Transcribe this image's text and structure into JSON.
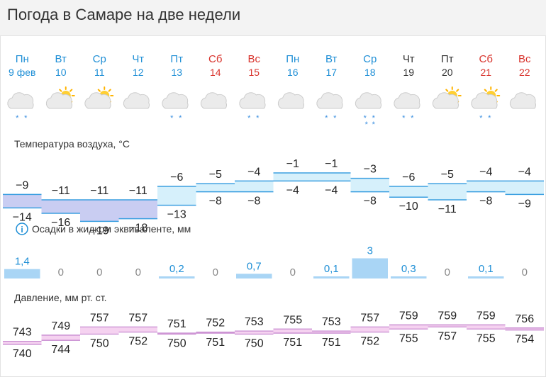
{
  "title": "Погода в Самаре на две недели",
  "days": [
    {
      "dow": "Пн",
      "date": "9 фев",
      "weekend": false,
      "dowColor": "#1f8fd6",
      "weather": "cloud-snow",
      "snow": 2
    },
    {
      "dow": "Вт",
      "date": "10",
      "weekend": false,
      "dowColor": "#1f8fd6",
      "weather": "sun-cloud",
      "snow": 0
    },
    {
      "dow": "Ср",
      "date": "11",
      "weekend": false,
      "dowColor": "#1f8fd6",
      "weather": "sun-cloud",
      "snow": 0
    },
    {
      "dow": "Чт",
      "date": "12",
      "weekend": false,
      "dowColor": "#1f8fd6",
      "weather": "cloud",
      "snow": 0
    },
    {
      "dow": "Пт",
      "date": "13",
      "weekend": false,
      "dowColor": "#1f8fd6",
      "weather": "cloud-snow",
      "snow": 2
    },
    {
      "dow": "Сб",
      "date": "14",
      "weekend": true,
      "dowColor": "#d8322b",
      "weather": "cloud",
      "snow": 0
    },
    {
      "dow": "Вс",
      "date": "15",
      "weekend": true,
      "dowColor": "#d8322b",
      "weather": "cloud-snow",
      "snow": 2
    },
    {
      "dow": "Пн",
      "date": "16",
      "weekend": false,
      "dowColor": "#1f8fd6",
      "weather": "cloud",
      "snow": 0
    },
    {
      "dow": "Вт",
      "date": "17",
      "weekend": false,
      "dowColor": "#1f8fd6",
      "weather": "cloud-snow",
      "snow": 2
    },
    {
      "dow": "Ср",
      "date": "18",
      "weekend": false,
      "dowColor": "#1f8fd6",
      "weather": "cloud-snow",
      "snow": 4
    },
    {
      "dow": "Чт",
      "date": "19",
      "weekend": false,
      "dowColor": "#333333",
      "weather": "cloud-snow",
      "snow": 2
    },
    {
      "dow": "Пт",
      "date": "20",
      "weekend": false,
      "dowColor": "#333333",
      "weather": "sun-cloud",
      "snow": 0
    },
    {
      "dow": "Сб",
      "date": "21",
      "weekend": true,
      "dowColor": "#d8322b",
      "weather": "sun-cloud-snow",
      "snow": 2
    },
    {
      "dow": "Вс",
      "date": "22",
      "weekend": true,
      "dowColor": "#d8322b",
      "weather": "cloud",
      "snow": 0
    }
  ],
  "temperature": {
    "label": "Температура воздуха, °С",
    "max": [
      "−9",
      "−11",
      "−11",
      "−11",
      "−6",
      "−5",
      "−4",
      "−1",
      "−1",
      "−3",
      "−6",
      "−5",
      "−4",
      "−4"
    ],
    "min": [
      "−14",
      "−16",
      "−19",
      "−18",
      "−13",
      "−8",
      "−8",
      "−4",
      "−4",
      "−8",
      "−10",
      "−11",
      "−8",
      "−9"
    ],
    "maxVal": [
      -9,
      -11,
      -11,
      -11,
      -6,
      -5,
      -4,
      -1,
      -1,
      -3,
      -6,
      -5,
      -4,
      -4
    ],
    "minVal": [
      -14,
      -16,
      -19,
      -18,
      -13,
      -8,
      -8,
      -4,
      -4,
      -8,
      -10,
      -11,
      -8,
      -9
    ]
  },
  "precipitation": {
    "label": "Осадки в жидком эквиваленте, мм",
    "info_icon": "info-icon",
    "values": [
      "1,4",
      "0",
      "0",
      "0",
      "0,2",
      "0",
      "0,7",
      "0",
      "0,1",
      "3",
      "0,3",
      "0",
      "0,1",
      "0"
    ],
    "amounts": [
      1.4,
      0,
      0,
      0,
      0.2,
      0,
      0.7,
      0,
      0.1,
      3,
      0.3,
      0,
      0.1,
      0
    ]
  },
  "pressure": {
    "label": "Давление, мм рт. ст.",
    "max": [
      "743",
      "749",
      "757",
      "757",
      "751",
      "752",
      "753",
      "755",
      "753",
      "757",
      "759",
      "759",
      "759",
      "756"
    ],
    "min": [
      "740",
      "744",
      "750",
      "752",
      "750",
      "751",
      "750",
      "751",
      "751",
      "752",
      "755",
      "757",
      "755",
      "754"
    ],
    "maxVal": [
      743,
      749,
      757,
      757,
      751,
      752,
      753,
      755,
      753,
      757,
      759,
      759,
      759,
      756
    ],
    "minVal": [
      740,
      744,
      750,
      752,
      750,
      751,
      750,
      751,
      751,
      752,
      755,
      757,
      755,
      754
    ]
  },
  "colors": {
    "weekday": "#1f8fd6",
    "weekend": "#d8322b",
    "snow": "#3b8fe0",
    "temp_cold": "#c9cdf2",
    "temp_warm": "#d6f0fb",
    "precip": "#a9d5f5",
    "pressure": "#f5d2f0",
    "pressure_line": "#c78ad0"
  }
}
